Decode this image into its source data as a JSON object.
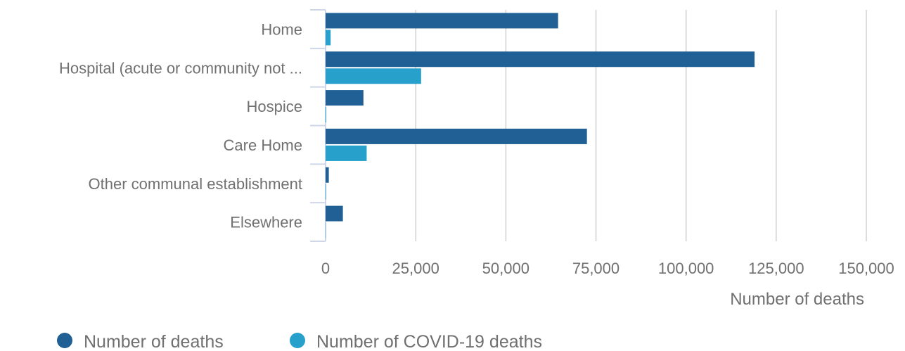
{
  "chart_data": {
    "type": "bar",
    "orientation": "horizontal",
    "categories": [
      "Home",
      "Hospital (acute or community not ...",
      "Hospice",
      "Care Home",
      "Other communal establishment",
      "Elsewhere"
    ],
    "series": [
      {
        "name": "Number of deaths",
        "color": "#206095",
        "values": [
          64500,
          119000,
          10500,
          72500,
          900,
          4800
        ]
      },
      {
        "name": "Number of COVID-19 deaths",
        "color": "#27a0cc",
        "values": [
          1400,
          26500,
          200,
          11400,
          150,
          80
        ]
      }
    ],
    "xlabel": "Number of deaths",
    "xlim": [
      0,
      150000
    ],
    "xticks": [
      0,
      25000,
      50000,
      75000,
      100000,
      125000,
      150000
    ],
    "xtick_labels": [
      "0",
      "25,000",
      "50,000",
      "75,000",
      "100,000",
      "125,000",
      "150,000"
    ],
    "grid": true,
    "legend_position": "bottom-left"
  }
}
